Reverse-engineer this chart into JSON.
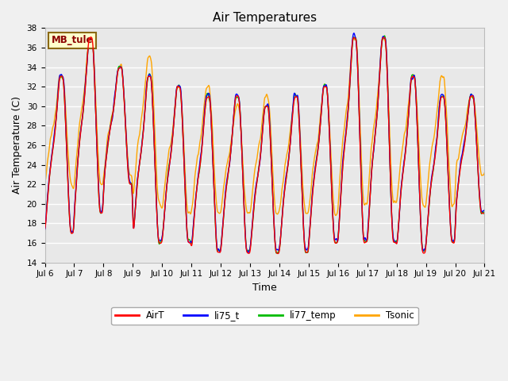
{
  "title": "Air Temperatures",
  "xlabel": "Time",
  "ylabel": "Air Temperature (C)",
  "ylim": [
    14,
    38
  ],
  "yticks": [
    14,
    16,
    18,
    20,
    22,
    24,
    26,
    28,
    30,
    32,
    34,
    36,
    38
  ],
  "x_labels": [
    "Jul 6",
    "Jul 7",
    "Jul 8",
    "Jul 9",
    "Jul 10",
    "Jul 11",
    "Jul 12",
    "Jul 13",
    "Jul 14",
    "Jul 15",
    "Jul 16",
    "Jul 17",
    "Jul 18",
    "Jul 19",
    "Jul 20",
    "Jul 21"
  ],
  "annotation_text": "MB_tule",
  "annotation_color": "#8B0000",
  "annotation_bg": "#FFFFCC",
  "annotation_border": "#8B6914",
  "colors": {
    "AirT": "#FF0000",
    "li75_t": "#0000FF",
    "li77_temp": "#00BB00",
    "Tsonic": "#FFA500"
  },
  "background_color": "#E8E8E8",
  "grid_color": "#FFFFFF",
  "line_width": 1.0,
  "fig_bg": "#F0F0F0"
}
